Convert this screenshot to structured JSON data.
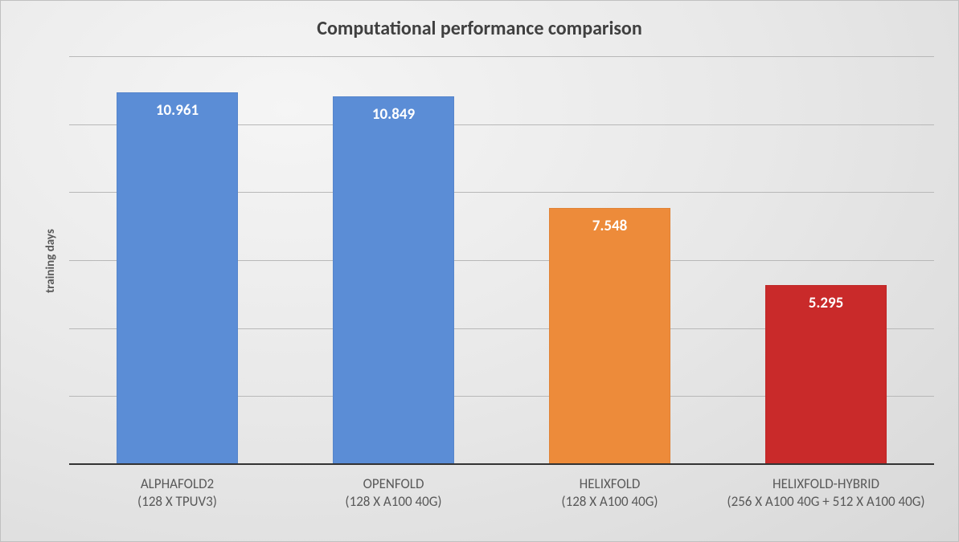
{
  "chart": {
    "type": "bar",
    "title": "Computational performance comparison",
    "title_fontsize": 24,
    "title_color": "#404040",
    "ylabel": "training days",
    "ylabel_fontsize": 15,
    "ylabel_color": "#595959",
    "background_gradient": [
      "#f5f5f5",
      "#e8e8e8",
      "#d8d8d8"
    ],
    "grid_color": "#b8b8b8",
    "axis_color": "#333333",
    "ylim": [
      0,
      12
    ],
    "gridline_count": 6,
    "bar_width_ratio": 0.56,
    "data_label_color": "#ffffff",
    "data_label_fontsize": 19,
    "x_label_fontsize": 17,
    "x_label_color": "#595959",
    "series": [
      {
        "name": "ALPHAFOLD2",
        "subtitle": "(128 X TPUV3)",
        "value": 10.961,
        "color": "#5b8dd6"
      },
      {
        "name": "OPENFOLD",
        "subtitle": "(128 X A100 40G)",
        "value": 10.849,
        "color": "#5b8dd6"
      },
      {
        "name": "HELIXFOLD",
        "subtitle": "(128 X A100 40G)",
        "value": 7.548,
        "color": "#ed8b3a"
      },
      {
        "name": "HELIXFOLD-HYBRID",
        "subtitle": "(256 X A100 40G + 512 X A100 40G)",
        "value": 5.295,
        "color": "#c92a2a"
      }
    ]
  }
}
